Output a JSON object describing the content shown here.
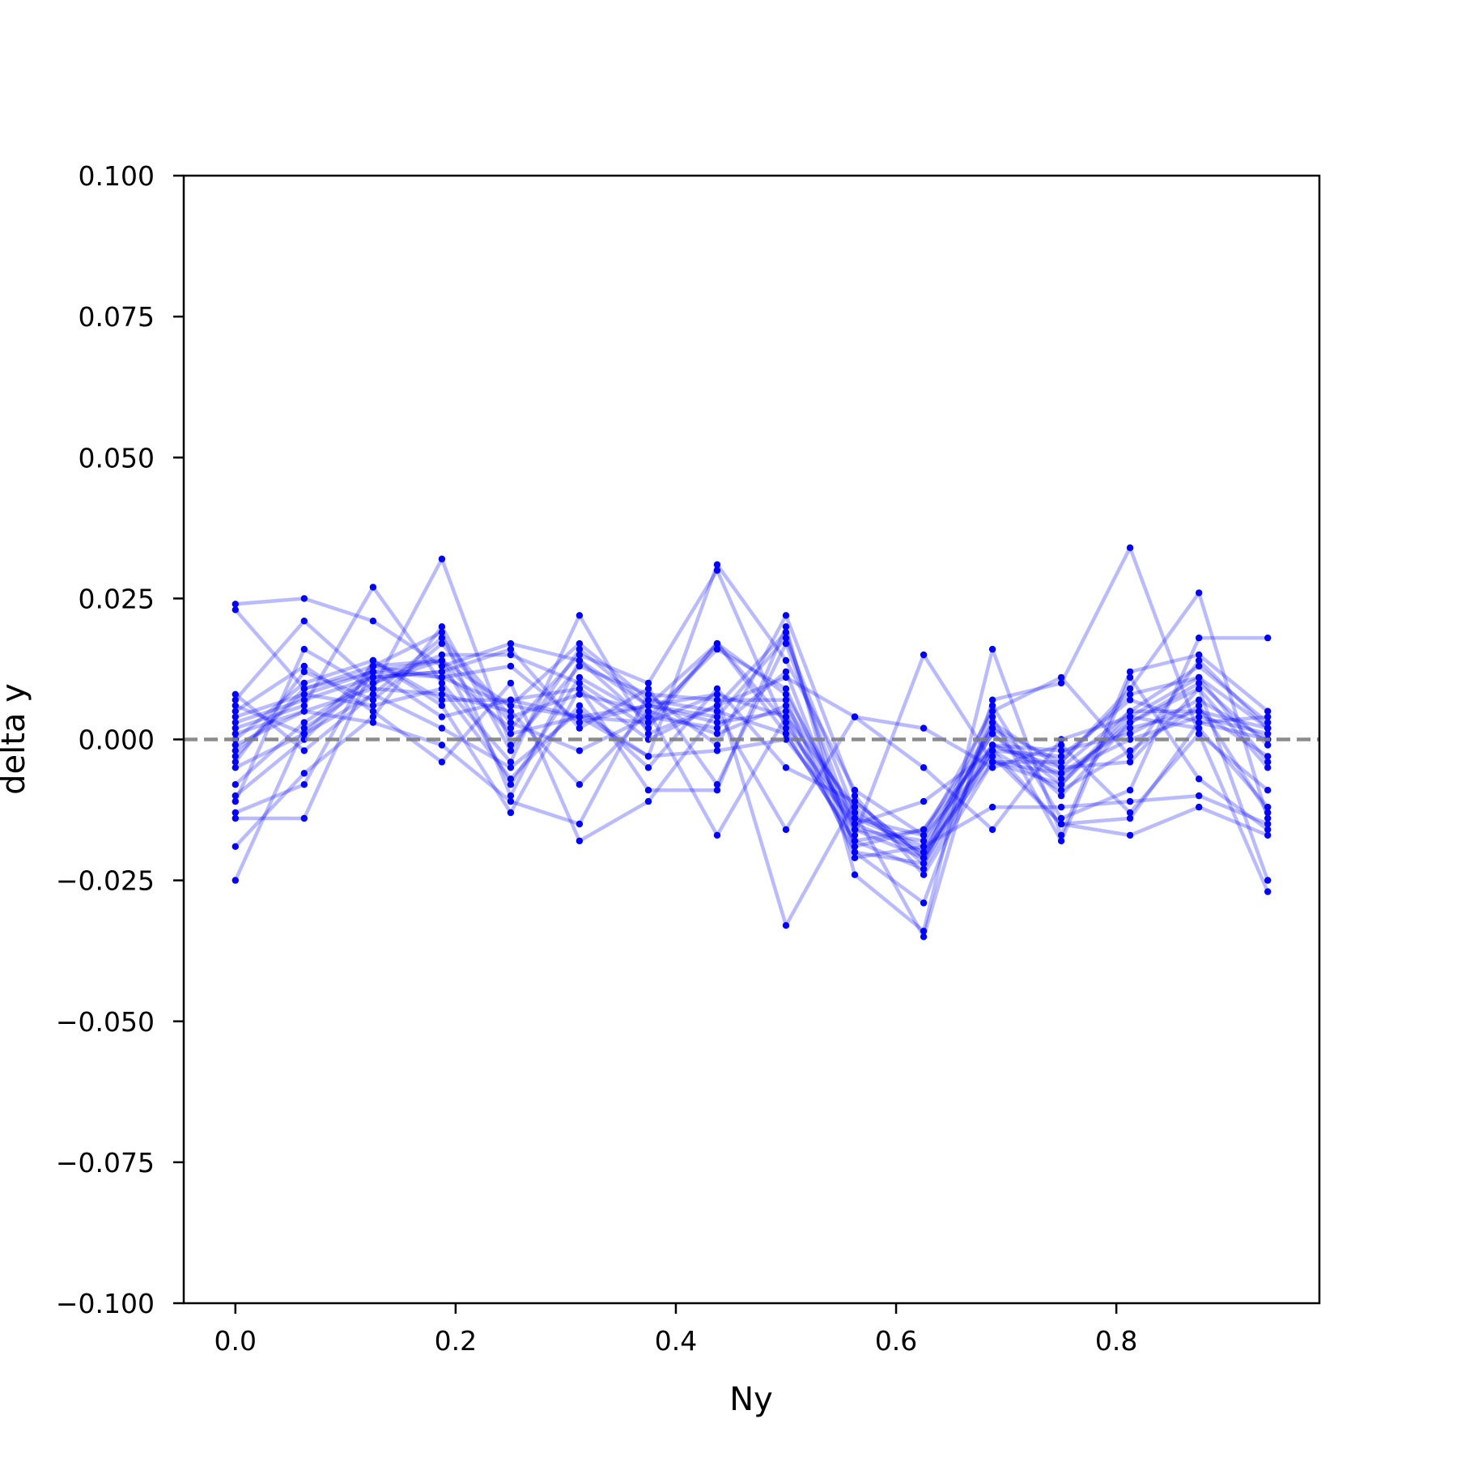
{
  "chart_data": {
    "type": "line",
    "title": "",
    "xlabel": "Ny",
    "ylabel": "delta y",
    "xlim": [
      -0.0469,
      0.9844
    ],
    "ylim": [
      -0.1,
      0.1
    ],
    "x_ticks": [
      0.0,
      0.2,
      0.4,
      0.6,
      0.8
    ],
    "x_tick_labels": [
      "0.0",
      "0.2",
      "0.4",
      "0.6",
      "0.8"
    ],
    "y_ticks": [
      0.1,
      0.075,
      0.05,
      0.025,
      0.0,
      -0.025,
      -0.05,
      -0.075,
      -0.1
    ],
    "y_tick_labels": [
      "0.100",
      "0.075",
      "0.050",
      "0.025",
      "0.000",
      "−0.025",
      "−0.050",
      "−0.075",
      "−0.100"
    ],
    "grid": false,
    "legend": "none",
    "reference_line": {
      "y": 0.0,
      "style": "dashed",
      "color": "#808080"
    },
    "series_color": "#0000ff",
    "x": [
      0.0,
      0.0625,
      0.125,
      0.1875,
      0.25,
      0.3125,
      0.375,
      0.4375,
      0.5,
      0.5625,
      0.625,
      0.6875,
      0.75,
      0.8125,
      0.875,
      0.9375
    ],
    "series": [
      {
        "values": [
          0.024,
          0.025,
          0.021,
          0.013,
          0.017,
          0.014,
          0.006,
          0.003,
          0.005,
          -0.015,
          -0.02,
          -0.004,
          -0.006,
          0.002,
          0.005,
          0.002
        ]
      },
      {
        "values": [
          0.023,
          0.009,
          0.012,
          0.011,
          0.006,
          0.004,
          0.003,
          0.008,
          0.004,
          -0.012,
          -0.022,
          0.003,
          -0.005,
          0.005,
          0.013,
          0.003
        ]
      },
      {
        "values": [
          0.008,
          -0.002,
          0.008,
          0.018,
          0.004,
          0.008,
          0.005,
          0.001,
          0.006,
          -0.013,
          -0.02,
          0.002,
          -0.007,
          0.003,
          0.01,
          -0.001
        ]
      },
      {
        "values": [
          0.007,
          0.021,
          0.01,
          0.015,
          0.015,
          0.01,
          0.002,
          0.017,
          0.003,
          -0.016,
          -0.021,
          -0.002,
          -0.009,
          -0.002,
          0.006,
          -0.013
        ]
      },
      {
        "values": [
          0.006,
          0.001,
          0.013,
          0.014,
          0.006,
          0.017,
          0.007,
          0.005,
          0.001,
          -0.018,
          -0.023,
          -0.002,
          -0.003,
          0.007,
          0.003,
          0.004
        ]
      },
      {
        "values": [
          0.003,
          0.007,
          0.011,
          0.012,
          0.002,
          0.015,
          0.01,
          0.03,
          0.002,
          -0.014,
          -0.019,
          0.001,
          -0.008,
          0.004,
          0.011,
          -0.004
        ]
      },
      {
        "values": [
          0.002,
          0.006,
          0.027,
          0.01,
          -0.004,
          0.022,
          0.001,
          0.006,
          0.019,
          -0.02,
          -0.022,
          -0.001,
          -0.002,
          0.001,
          0.007,
          0.0
        ]
      },
      {
        "values": [
          0.0,
          0.01,
          0.014,
          0.007,
          0.007,
          0.004,
          -0.003,
          0.031,
          0.014,
          -0.009,
          -0.017,
          0.005,
          0.011,
          -0.003,
          0.014,
          0.002
        ]
      },
      {
        "values": [
          -0.001,
          0.005,
          0.009,
          0.032,
          -0.001,
          0.013,
          0.008,
          -0.001,
          0.022,
          -0.01,
          -0.024,
          -0.004,
          -0.004,
          0.009,
          0.026,
          -0.014
        ]
      },
      {
        "values": [
          -0.002,
          0.008,
          0.006,
          0.009,
          -0.007,
          0.006,
          -0.005,
          0.009,
          -0.005,
          -0.011,
          -0.021,
          0.006,
          -0.014,
          -0.009,
          0.018,
          0.018
        ]
      },
      {
        "values": [
          -0.004,
          0.012,
          0.007,
          0.017,
          0.003,
          -0.002,
          0.004,
          0.002,
          0.012,
          -0.019,
          -0.016,
          -0.001,
          -0.006,
          0.0,
          0.004,
          0.001
        ]
      },
      {
        "values": [
          -0.008,
          0.003,
          0.011,
          0.012,
          0.016,
          0.002,
          0.009,
          -0.008,
          0.017,
          -0.016,
          -0.018,
          0.001,
          -0.01,
          0.003,
          0.009,
          -0.005
        ]
      },
      {
        "values": [
          -0.01,
          0.0,
          0.012,
          0.014,
          -0.008,
          0.011,
          0.004,
          0.016,
          0.009,
          -0.017,
          0.015,
          -0.004,
          -0.008,
          0.005,
          0.005,
          -0.003
        ]
      },
      {
        "values": [
          -0.011,
          0.016,
          0.009,
          0.008,
          0.005,
          -0.008,
          0.005,
          -0.017,
          0.004,
          -0.02,
          -0.029,
          0.004,
          -0.018,
          0.011,
          -0.007,
          -0.016
        ]
      },
      {
        "values": [
          -0.013,
          -0.008,
          0.014,
          0.006,
          -0.013,
          0.009,
          -0.009,
          -0.009,
          0.02,
          -0.024,
          -0.034,
          0.016,
          -0.017,
          0.012,
          0.015,
          0.005
        ]
      },
      {
        "values": [
          -0.014,
          -0.014,
          0.013,
          0.011,
          0.013,
          0.003,
          0.006,
          0.004,
          0.018,
          -0.013,
          -0.035,
          0.007,
          0.01,
          0.034,
          0.001,
          -0.027
        ]
      },
      {
        "values": [
          -0.019,
          -0.006,
          0.004,
          0.02,
          -0.002,
          0.016,
          0.006,
          0.017,
          0.008,
          -0.014,
          -0.017,
          -0.003,
          -0.015,
          -0.017,
          -0.012,
          -0.017
        ]
      },
      {
        "values": [
          -0.025,
          0.002,
          0.01,
          0.014,
          0.001,
          0.004,
          0.006,
          0.008,
          -0.033,
          -0.011,
          -0.021,
          -0.001,
          -0.005,
          -0.004,
          0.009,
          -0.025
        ]
      },
      {
        "values": [
          0.005,
          0.013,
          0.005,
          -0.004,
          0.01,
          -0.018,
          -0.011,
          0.005,
          -0.016,
          0.004,
          -0.005,
          -0.016,
          0.0,
          0.004,
          0.002,
          -0.012
        ]
      },
      {
        "values": [
          0.001,
          0.005,
          0.003,
          -0.001,
          -0.011,
          -0.015,
          0.008,
          0.007,
          0.007,
          -0.021,
          -0.019,
          -0.012,
          -0.012,
          -0.011,
          -0.01,
          -0.015
        ]
      },
      {
        "values": [
          -0.005,
          0.001,
          0.008,
          0.002,
          -0.005,
          0.005,
          -0.003,
          -0.002,
          0.0,
          -0.015,
          -0.011,
          -0.002,
          -0.015,
          -0.014,
          0.003,
          0.0
        ]
      },
      {
        "values": [
          0.004,
          0.008,
          0.012,
          0.004,
          0.007,
          0.009,
          0.0,
          0.006,
          0.011,
          0.004,
          0.002,
          -0.005,
          -0.001,
          -0.013,
          0.001,
          -0.009
        ]
      },
      {
        "values": [
          -0.003,
          0.009,
          0.013,
          0.019,
          -0.01,
          0.014,
          0.003,
          0.017,
          0.001,
          -0.018,
          -0.016,
          0.002,
          -0.004,
          0.008,
          0.011,
          0.002
        ]
      }
    ]
  }
}
